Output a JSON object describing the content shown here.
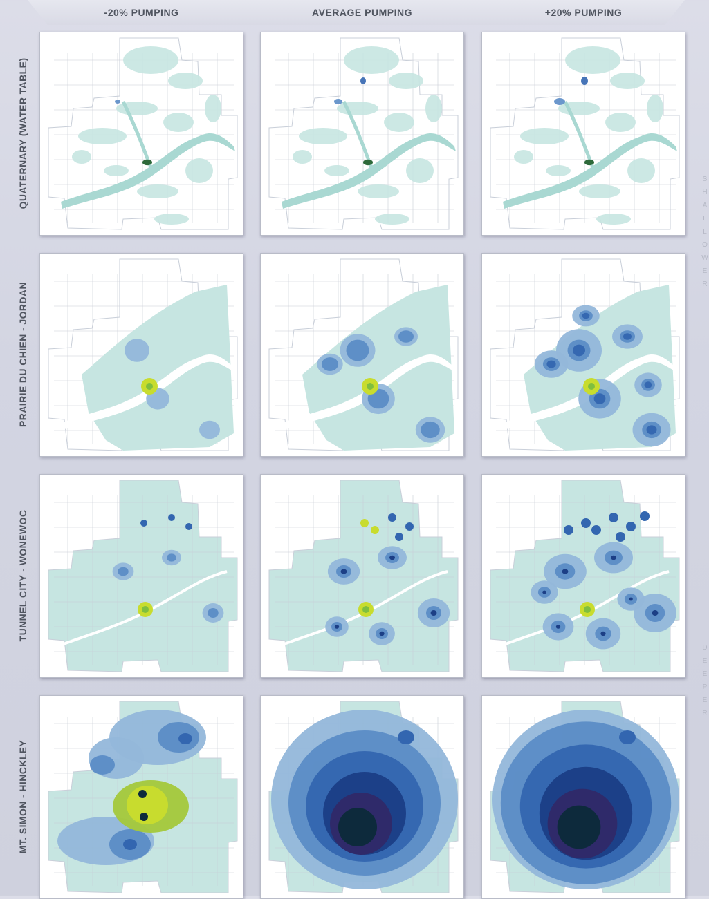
{
  "columns": [
    "-20% PUMPING",
    "AVERAGE PUMPING",
    "+20% PUMPING"
  ],
  "rows": [
    "QUATERNARY (WATER TABLE)",
    "PRAIRIE DU CHIEN - JORDAN",
    "TUNNEL CITY - WONEWOC",
    "MT. SIMON - HINCKLEY"
  ],
  "side_labels": {
    "top": "SHALLOWER",
    "bottom": "DEEPER"
  },
  "colors": {
    "base": "#c6e5e1",
    "light_blue": "#94b7da",
    "mid_blue": "#5b8cc6",
    "blue": "#3366b0",
    "dark_blue": "#1c3f86",
    "purple": "#2f2a6a",
    "darkest": "#0d2a3c",
    "yellow_green": "#c8dc2e",
    "green": "#7fbf3f"
  }
}
